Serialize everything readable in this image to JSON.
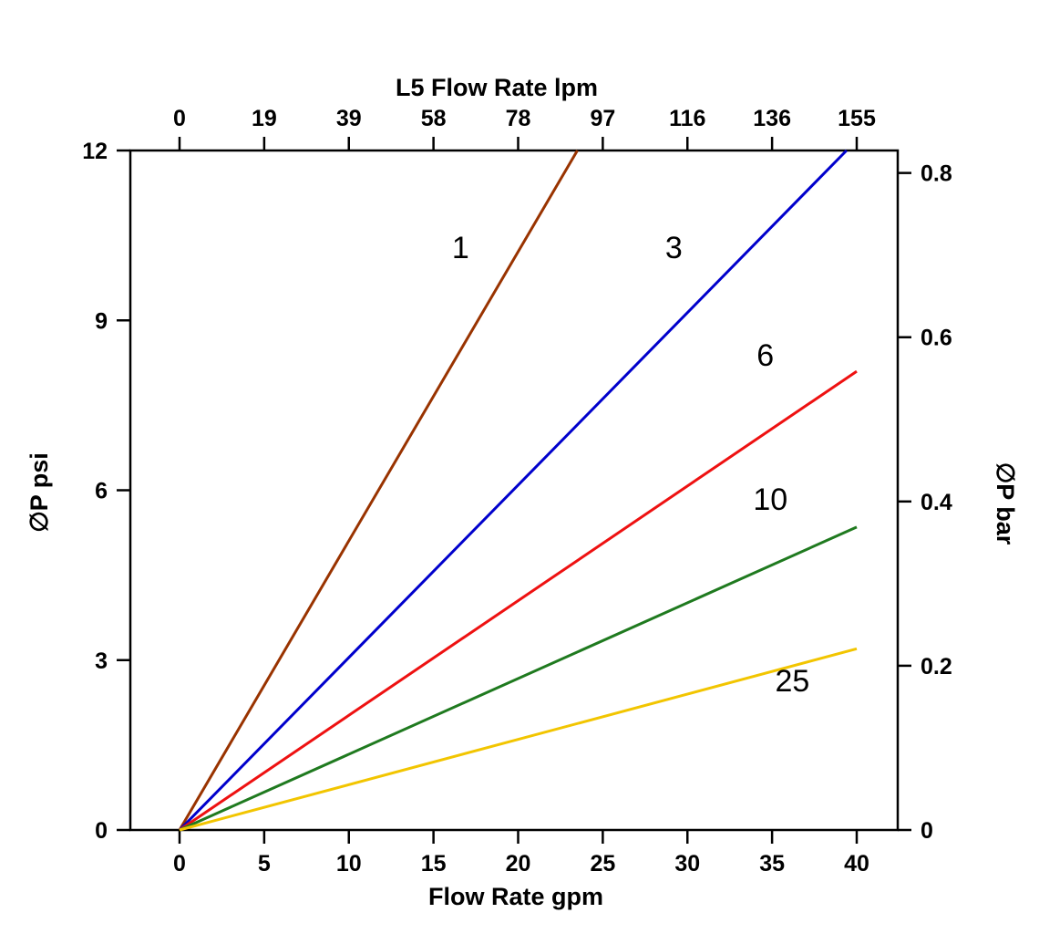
{
  "chart_data": {
    "type": "line",
    "title_top": "L5 Flow Rate lpm",
    "xlabel_bottom": "Flow Rate gpm",
    "ylabel_left": "∅P psi",
    "ylabel_right": "∅P bar",
    "grid": false,
    "x_bottom": {
      "ticks": [
        0,
        5,
        10,
        15,
        20,
        25,
        30,
        35,
        40
      ],
      "range": [
        0,
        40
      ]
    },
    "x_top": {
      "ticks": [
        0,
        19,
        39,
        58,
        78,
        97,
        116,
        136,
        155
      ],
      "range": [
        0,
        155
      ]
    },
    "y_left": {
      "ticks": [
        0,
        3,
        6,
        9,
        12
      ],
      "range": [
        0,
        12
      ]
    },
    "y_right": {
      "ticks": [
        0,
        0.2,
        0.4,
        0.6,
        0.8
      ],
      "psi_per_bar": 14.5038
    },
    "series": [
      {
        "label": "1",
        "color": "#993300",
        "points": [
          [
            0,
            0
          ],
          [
            23.5,
            12.0
          ]
        ],
        "label_pos": [
          16.6,
          10.1
        ]
      },
      {
        "label": "3",
        "color": "#0000cc",
        "points": [
          [
            0,
            0
          ],
          [
            39.4,
            12.0
          ]
        ],
        "label_pos": [
          29.2,
          10.1
        ]
      },
      {
        "label": "6",
        "color": "#ee1111",
        "points": [
          [
            0,
            0
          ],
          [
            40.0,
            8.1
          ]
        ],
        "label_pos": [
          34.6,
          8.2
        ]
      },
      {
        "label": "10",
        "color": "#1f7a1f",
        "points": [
          [
            0,
            0
          ],
          [
            40.0,
            5.35
          ]
        ],
        "label_pos": [
          34.9,
          5.65
        ]
      },
      {
        "label": "25",
        "color": "#f2c500",
        "points": [
          [
            0,
            0
          ],
          [
            40.0,
            3.2
          ]
        ],
        "label_pos": [
          36.2,
          2.45
        ]
      }
    ]
  }
}
